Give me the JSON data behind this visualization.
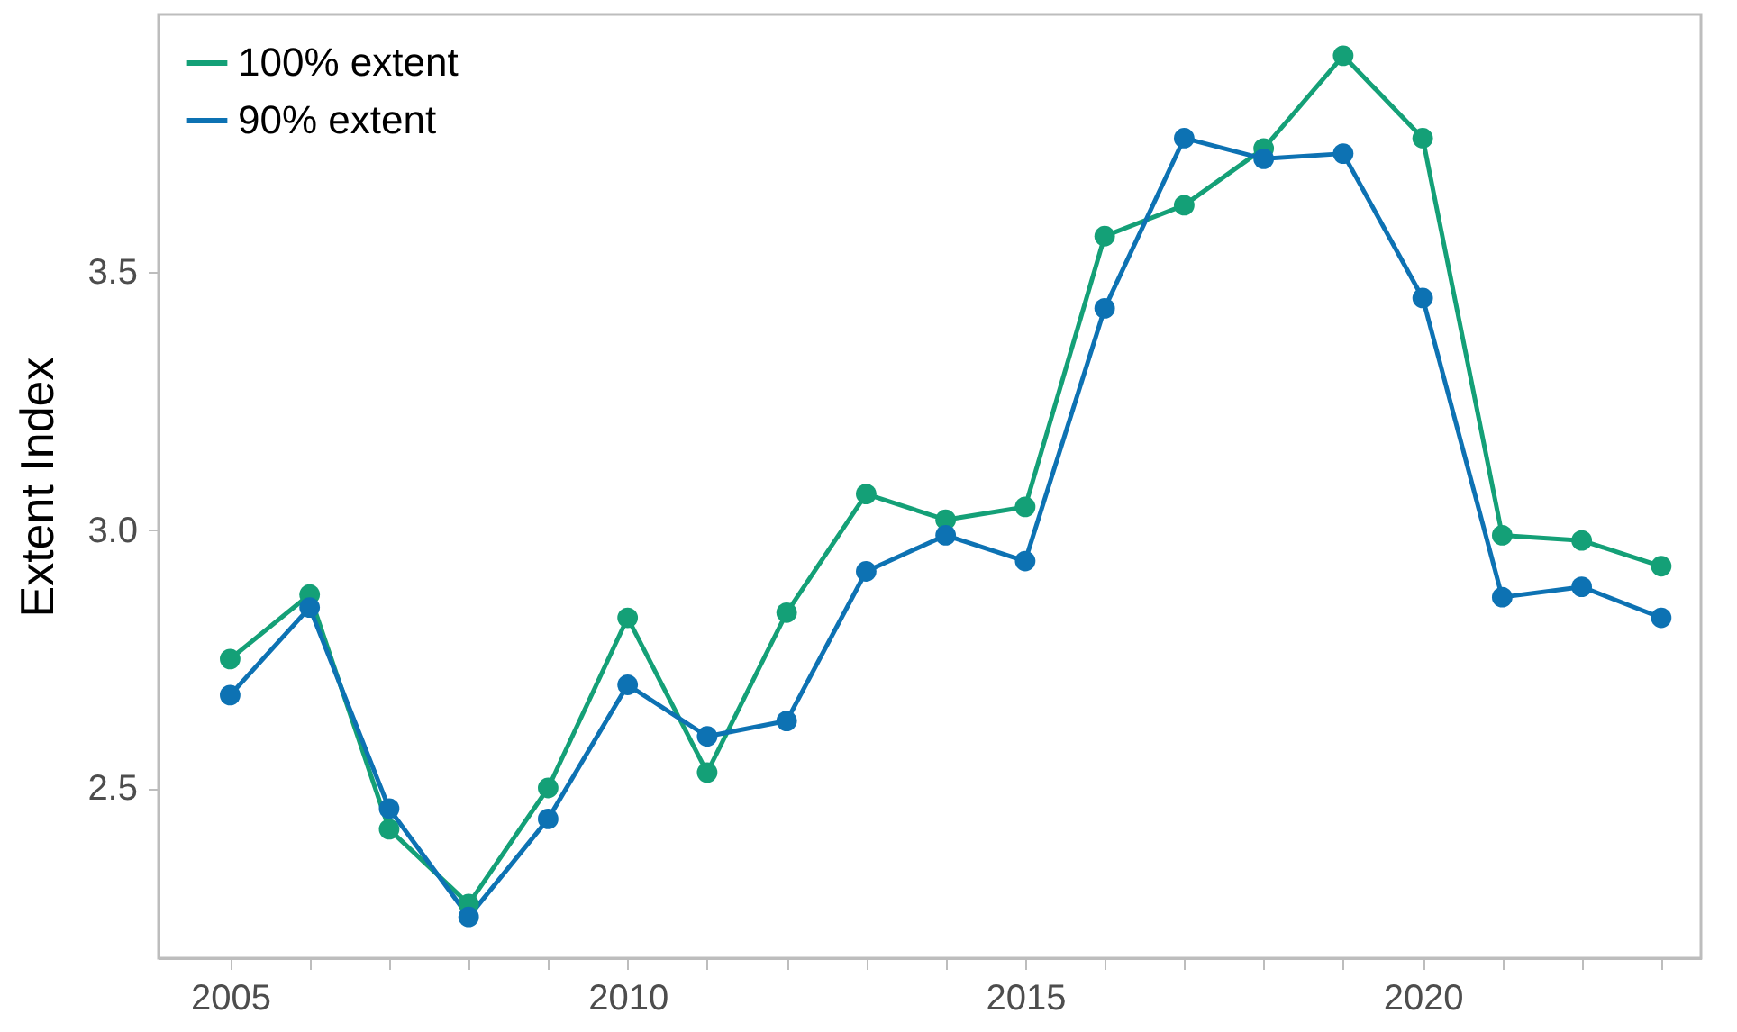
{
  "chart_data": {
    "type": "line",
    "ylabel": "Extent Index",
    "x": [
      2005,
      2006,
      2007,
      2008,
      2009,
      2010,
      2011,
      2012,
      2013,
      2014,
      2015,
      2016,
      2017,
      2018,
      2019,
      2020,
      2021,
      2022,
      2023
    ],
    "series": [
      {
        "name": "100% extent",
        "color": "#14a077",
        "values": [
          2.75,
          2.875,
          2.42,
          2.275,
          2.5,
          2.83,
          2.53,
          2.84,
          3.07,
          3.02,
          3.045,
          3.57,
          3.63,
          3.74,
          3.92,
          3.76,
          2.99,
          2.98,
          2.93
        ]
      },
      {
        "name": "90% extent",
        "color": "#0d72b3",
        "values": [
          2.68,
          2.85,
          2.46,
          2.25,
          2.44,
          2.7,
          2.6,
          2.63,
          2.92,
          2.99,
          2.94,
          3.43,
          3.76,
          3.72,
          3.73,
          3.45,
          2.87,
          2.89,
          2.83
        ]
      }
    ],
    "xlim": [
      2004.1,
      2023.5
    ],
    "xticks": [
      2005,
      {
        "value": 2006,
        "label": null
      },
      {
        "value": 2007,
        "label": null
      },
      {
        "value": 2008,
        "label": null
      },
      {
        "value": 2009,
        "label": null
      },
      2010,
      {
        "value": 2011,
        "label": null
      },
      {
        "value": 2012,
        "label": null
      },
      {
        "value": 2013,
        "label": null
      },
      {
        "value": 2014,
        "label": null
      },
      2015,
      {
        "value": 2016,
        "label": null
      },
      {
        "value": 2017,
        "label": null
      },
      {
        "value": 2018,
        "label": null
      },
      {
        "value": 2019,
        "label": null
      },
      2020,
      {
        "value": 2021,
        "label": null
      },
      {
        "value": 2022,
        "label": null
      },
      {
        "value": 2023,
        "label": null
      }
    ],
    "ylim": [
      2.17,
      4.0
    ],
    "yticks": [
      2.5,
      {
        "value": 3.0,
        "label": "3.0"
      },
      3.5
    ],
    "legend": "top left",
    "marker": "circle",
    "line_style": "solid",
    "grid": false
  }
}
